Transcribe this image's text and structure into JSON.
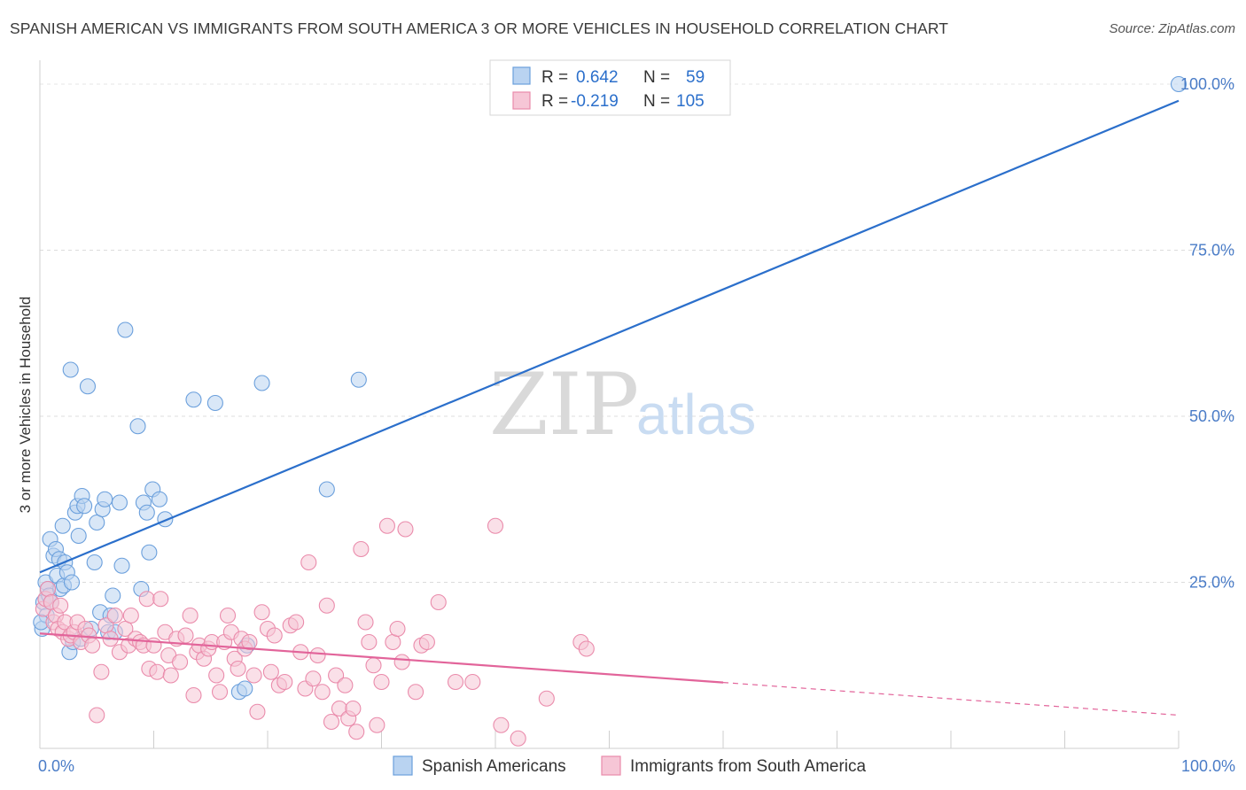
{
  "title": "SPANISH AMERICAN VS IMMIGRANTS FROM SOUTH AMERICA 3 OR MORE VEHICLES IN HOUSEHOLD CORRELATION CHART",
  "source": "Source: ZipAtlas.com",
  "watermark": {
    "zip": "ZIP",
    "atlas": "atlas"
  },
  "chart_data": {
    "type": "scatter",
    "title": "SPANISH AMERICAN VS IMMIGRANTS FROM SOUTH AMERICA 3 OR MORE VEHICLES IN HOUSEHOLD CORRELATION CHART",
    "xlabel": "",
    "ylabel": "3 or more Vehicles in Household",
    "xlim": [
      0,
      100
    ],
    "ylim": [
      0,
      102
    ],
    "x_tick_labels": [
      "0.0%",
      "100.0%"
    ],
    "y_ticks": [
      25,
      50,
      75,
      100
    ],
    "y_tick_labels": [
      "25.0%",
      "50.0%",
      "75.0%",
      "100.0%"
    ],
    "grid": true,
    "legend": {
      "placement": "top-center",
      "rows": [
        {
          "r_label": "R =",
          "r_value": "0.642",
          "n_label": "N =",
          "n_value": "59"
        },
        {
          "r_label": "R =",
          "r_value": "-0.219",
          "n_label": "N =",
          "n_value": "105"
        }
      ]
    },
    "series": [
      {
        "name": "Spanish Americans",
        "color": "#6a9fdc",
        "fill": "#b9d3f1",
        "line_color": "#2b6fcb",
        "trend": {
          "x0": 0,
          "y0": 26.5,
          "x1": 100,
          "y1": 97.5,
          "solid_until": 100
        },
        "points": [
          [
            0.2,
            18
          ],
          [
            0.3,
            22
          ],
          [
            0.5,
            25
          ],
          [
            0.6,
            20
          ],
          [
            0.7,
            24
          ],
          [
            0.8,
            23
          ],
          [
            0.9,
            31.5
          ],
          [
            1.0,
            22
          ],
          [
            1.2,
            29
          ],
          [
            1.4,
            30
          ],
          [
            1.5,
            26
          ],
          [
            1.7,
            28.5
          ],
          [
            1.8,
            24
          ],
          [
            2.0,
            33.5
          ],
          [
            2.1,
            24.5
          ],
          [
            2.2,
            28
          ],
          [
            2.4,
            26.5
          ],
          [
            2.6,
            14.5
          ],
          [
            2.7,
            57
          ],
          [
            2.8,
            25
          ],
          [
            2.9,
            16
          ],
          [
            3.1,
            35.5
          ],
          [
            3.3,
            36.5
          ],
          [
            3.4,
            32
          ],
          [
            3.6,
            16.5
          ],
          [
            3.7,
            38
          ],
          [
            3.9,
            36.5
          ],
          [
            4.2,
            54.5
          ],
          [
            4.5,
            18
          ],
          [
            4.8,
            28
          ],
          [
            5.0,
            34
          ],
          [
            5.3,
            20.5
          ],
          [
            5.5,
            36
          ],
          [
            5.7,
            37.5
          ],
          [
            6.0,
            17.5
          ],
          [
            6.2,
            20
          ],
          [
            6.4,
            23
          ],
          [
            6.6,
            17.5
          ],
          [
            7.0,
            37
          ],
          [
            7.2,
            27.5
          ],
          [
            7.5,
            63
          ],
          [
            8.6,
            48.5
          ],
          [
            8.9,
            24
          ],
          [
            9.1,
            37
          ],
          [
            9.4,
            35.5
          ],
          [
            9.6,
            29.5
          ],
          [
            9.9,
            39
          ],
          [
            10.5,
            37.5
          ],
          [
            11.0,
            34.5
          ],
          [
            13.5,
            52.5
          ],
          [
            15.4,
            52
          ],
          [
            17.5,
            8.5
          ],
          [
            18.0,
            9
          ],
          [
            18.2,
            15.5
          ],
          [
            19.5,
            55
          ],
          [
            25.2,
            39
          ],
          [
            28.0,
            55.5
          ],
          [
            100,
            100
          ],
          [
            0.1,
            19
          ]
        ]
      },
      {
        "name": "Immigrants from South America",
        "color": "#ea8bab",
        "fill": "#f6c6d6",
        "line_color": "#e2649a",
        "trend": {
          "x0": 0,
          "y0": 17.3,
          "x1": 100,
          "y1": 5.0,
          "solid_until": 60
        },
        "points": [
          [
            0.3,
            21
          ],
          [
            0.5,
            22.5
          ],
          [
            0.7,
            24
          ],
          [
            1.0,
            22
          ],
          [
            1.2,
            19
          ],
          [
            1.4,
            20
          ],
          [
            1.6,
            18
          ],
          [
            1.8,
            21.5
          ],
          [
            2.0,
            17.5
          ],
          [
            2.2,
            19
          ],
          [
            2.5,
            16.5
          ],
          [
            2.7,
            17
          ],
          [
            3.0,
            17.5
          ],
          [
            3.3,
            19
          ],
          [
            3.6,
            16
          ],
          [
            4.0,
            18
          ],
          [
            4.3,
            17
          ],
          [
            4.6,
            15.5
          ],
          [
            5.0,
            5
          ],
          [
            5.4,
            11.5
          ],
          [
            5.8,
            18.5
          ],
          [
            6.2,
            16.5
          ],
          [
            6.6,
            20
          ],
          [
            7.0,
            14.5
          ],
          [
            7.5,
            18
          ],
          [
            7.8,
            15.5
          ],
          [
            8.0,
            20
          ],
          [
            8.4,
            16.5
          ],
          [
            8.8,
            16
          ],
          [
            9.1,
            15.5
          ],
          [
            9.4,
            22.5
          ],
          [
            9.6,
            12
          ],
          [
            10.0,
            15.5
          ],
          [
            10.3,
            11.5
          ],
          [
            10.6,
            22.5
          ],
          [
            11.0,
            17.5
          ],
          [
            11.3,
            14
          ],
          [
            11.5,
            11
          ],
          [
            12.0,
            16.5
          ],
          [
            12.3,
            13
          ],
          [
            12.8,
            17
          ],
          [
            13.2,
            20
          ],
          [
            13.5,
            8
          ],
          [
            13.8,
            14.5
          ],
          [
            14.0,
            15.5
          ],
          [
            14.4,
            13.5
          ],
          [
            14.8,
            15
          ],
          [
            15.1,
            16
          ],
          [
            15.5,
            11
          ],
          [
            15.8,
            8.5
          ],
          [
            16.2,
            16
          ],
          [
            16.5,
            20
          ],
          [
            16.8,
            17.5
          ],
          [
            17.1,
            13.5
          ],
          [
            17.4,
            12
          ],
          [
            17.7,
            16.5
          ],
          [
            18.0,
            15
          ],
          [
            18.4,
            16
          ],
          [
            18.8,
            11
          ],
          [
            19.1,
            5.5
          ],
          [
            19.5,
            20.5
          ],
          [
            20.0,
            18
          ],
          [
            20.3,
            11.5
          ],
          [
            20.6,
            17
          ],
          [
            21.0,
            9.5
          ],
          [
            21.5,
            10
          ],
          [
            22.0,
            18.5
          ],
          [
            22.5,
            19
          ],
          [
            22.9,
            14.5
          ],
          [
            23.3,
            9
          ],
          [
            23.6,
            28
          ],
          [
            24.0,
            10.5
          ],
          [
            24.4,
            14
          ],
          [
            24.8,
            8.5
          ],
          [
            25.2,
            21.5
          ],
          [
            25.6,
            4
          ],
          [
            26.0,
            11
          ],
          [
            26.3,
            6
          ],
          [
            26.8,
            9.5
          ],
          [
            27.1,
            4.5
          ],
          [
            27.5,
            6
          ],
          [
            27.8,
            2.5
          ],
          [
            28.2,
            30
          ],
          [
            28.6,
            19
          ],
          [
            28.9,
            16
          ],
          [
            29.3,
            12.5
          ],
          [
            29.6,
            3.5
          ],
          [
            30.0,
            10
          ],
          [
            30.5,
            33.5
          ],
          [
            31.0,
            16
          ],
          [
            31.4,
            18
          ],
          [
            31.8,
            13
          ],
          [
            32.1,
            33
          ],
          [
            33.0,
            8.5
          ],
          [
            33.5,
            15.5
          ],
          [
            34.0,
            16
          ],
          [
            35.0,
            22
          ],
          [
            36.5,
            10
          ],
          [
            38.0,
            10
          ],
          [
            40.0,
            33.5
          ],
          [
            40.5,
            3.5
          ],
          [
            42.0,
            1.5
          ],
          [
            44.5,
            7.5
          ],
          [
            47.5,
            16
          ],
          [
            48.0,
            15
          ]
        ]
      }
    ]
  },
  "bottom_legend": [
    {
      "label": "Spanish Americans"
    },
    {
      "label": "Immigrants from South America"
    }
  ]
}
